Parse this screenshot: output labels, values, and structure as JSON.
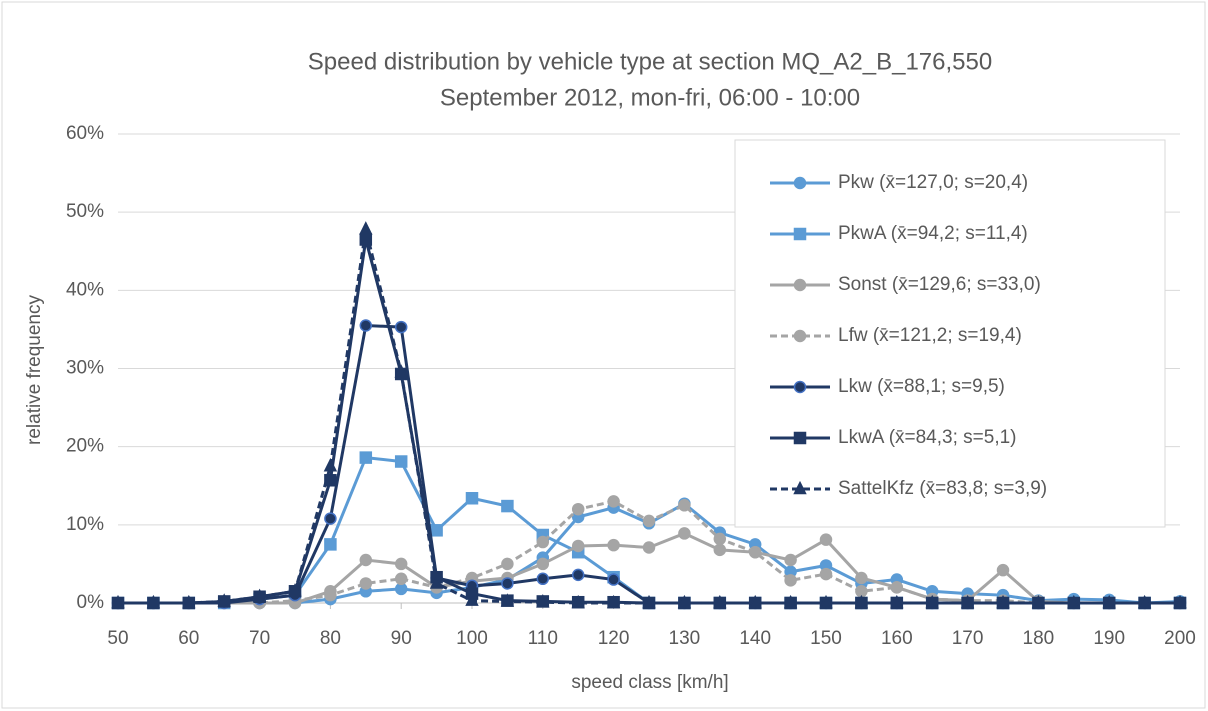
{
  "chart_data": {
    "type": "line",
    "title": "Speed distribution by vehicle type at section MQ_A2_B_176,550",
    "subtitle": "September 2012, mon-fri, 06:00 - 10:00",
    "x_label": "speed class [km/h]",
    "y_label": "relative frequency",
    "x": [
      50,
      55,
      60,
      65,
      70,
      75,
      80,
      85,
      90,
      95,
      100,
      105,
      110,
      115,
      120,
      125,
      130,
      135,
      140,
      145,
      150,
      155,
      160,
      165,
      170,
      175,
      180,
      185,
      190,
      195,
      200
    ],
    "xlim": [
      50,
      200
    ],
    "xticks": [
      50,
      60,
      70,
      80,
      90,
      100,
      110,
      120,
      130,
      140,
      150,
      160,
      170,
      180,
      190,
      200
    ],
    "ylim": [
      0,
      60
    ],
    "yticks": [
      {
        "value": 0,
        "label": "0%"
      },
      {
        "value": 10,
        "label": "10%"
      },
      {
        "value": 20,
        "label": "20%"
      },
      {
        "value": 30,
        "label": "30%"
      },
      {
        "value": 40,
        "label": "40%"
      },
      {
        "value": 50,
        "label": "50%"
      },
      {
        "value": 60,
        "label": "60%"
      }
    ],
    "grid": true,
    "legend": "upper right",
    "series": [
      {
        "name": "Pkw (x̄=127,0; s=20,4)",
        "color": "#5b9bd5",
        "marker": "circle",
        "dashed": false,
        "values": [
          0,
          0,
          0,
          0,
          0,
          0,
          0.5,
          1.5,
          1.8,
          1.3,
          2,
          3,
          5.8,
          11,
          12.2,
          10.2,
          12.7,
          9,
          7.5,
          4,
          4.8,
          2.5,
          3,
          1.5,
          1.2,
          1,
          0.3,
          0.5,
          0.4,
          0,
          0.2
        ]
      },
      {
        "name": "PkwA (x̄=94,2; s=11,4)",
        "color": "#5b9bd5",
        "marker": "square",
        "dashed": false,
        "values": [
          0,
          0,
          0,
          0,
          0.5,
          1,
          7.5,
          18.6,
          18.1,
          9.3,
          13.4,
          12.4,
          8.7,
          6.5,
          3.3,
          0,
          0,
          0,
          0,
          0,
          0,
          0,
          0,
          0,
          0,
          0,
          0,
          0,
          0,
          0,
          0
        ]
      },
      {
        "name": "Sonst (x̄=129,6; s=33,0)",
        "color": "#a5a5a5",
        "marker": "circle",
        "dashed": false,
        "values": [
          0,
          0,
          0,
          0,
          0,
          0,
          1.5,
          5.5,
          5,
          2,
          2.8,
          3.2,
          5,
          7.3,
          7.4,
          7.1,
          8.9,
          6.8,
          6.5,
          5.5,
          8.1,
          3.2,
          2,
          0.5,
          0.3,
          4.2,
          0.2,
          0,
          0,
          0,
          0
        ]
      },
      {
        "name": "Lfw (x̄=121,2; s=19,4)",
        "color": "#a5a5a5",
        "marker": "circle",
        "dashed": true,
        "values": [
          0,
          0,
          0,
          0,
          0,
          0.3,
          1,
          2.5,
          3.1,
          2,
          3.2,
          5,
          7.8,
          12,
          13,
          10.5,
          12.5,
          8.2,
          6.5,
          2.9,
          3.7,
          1.5,
          2,
          0.5,
          0.3,
          0.3,
          0,
          0,
          0,
          0,
          0
        ]
      },
      {
        "name": "Lkw (x̄=88,1; s=9,5)",
        "color": "#203864",
        "marker": "circle",
        "dashed": false,
        "values": [
          0,
          0,
          0,
          0,
          0.5,
          1,
          10.8,
          35.5,
          35.3,
          3.2,
          2.2,
          2.5,
          3.1,
          3.6,
          3,
          0,
          0,
          0,
          0,
          0,
          0,
          0,
          0,
          0,
          0,
          0,
          0,
          0,
          0,
          0,
          0
        ]
      },
      {
        "name": "LkwA (x̄=84,3; s=5,1)",
        "color": "#203864",
        "marker": "square",
        "dashed": false,
        "values": [
          0,
          0,
          0,
          0.2,
          0.8,
          1.5,
          15.7,
          46.5,
          29.3,
          3.3,
          1.2,
          0.3,
          0.2,
          0.1,
          0.1,
          0,
          0,
          0,
          0,
          0,
          0,
          0,
          0,
          0,
          0,
          0,
          0,
          0,
          0,
          0,
          0
        ]
      },
      {
        "name": "SattelKfz (x̄=83,8; s=3,9)",
        "color": "#203864",
        "marker": "triangle",
        "dashed": true,
        "values": [
          0,
          0,
          0,
          0.2,
          0.8,
          1.5,
          17.5,
          47.8,
          29.5,
          2.5,
          0.3,
          0.2,
          0.1,
          0,
          0,
          0,
          0,
          0,
          0,
          0,
          0,
          0,
          0,
          0,
          0,
          0,
          0,
          0,
          0,
          0,
          0
        ]
      }
    ]
  }
}
